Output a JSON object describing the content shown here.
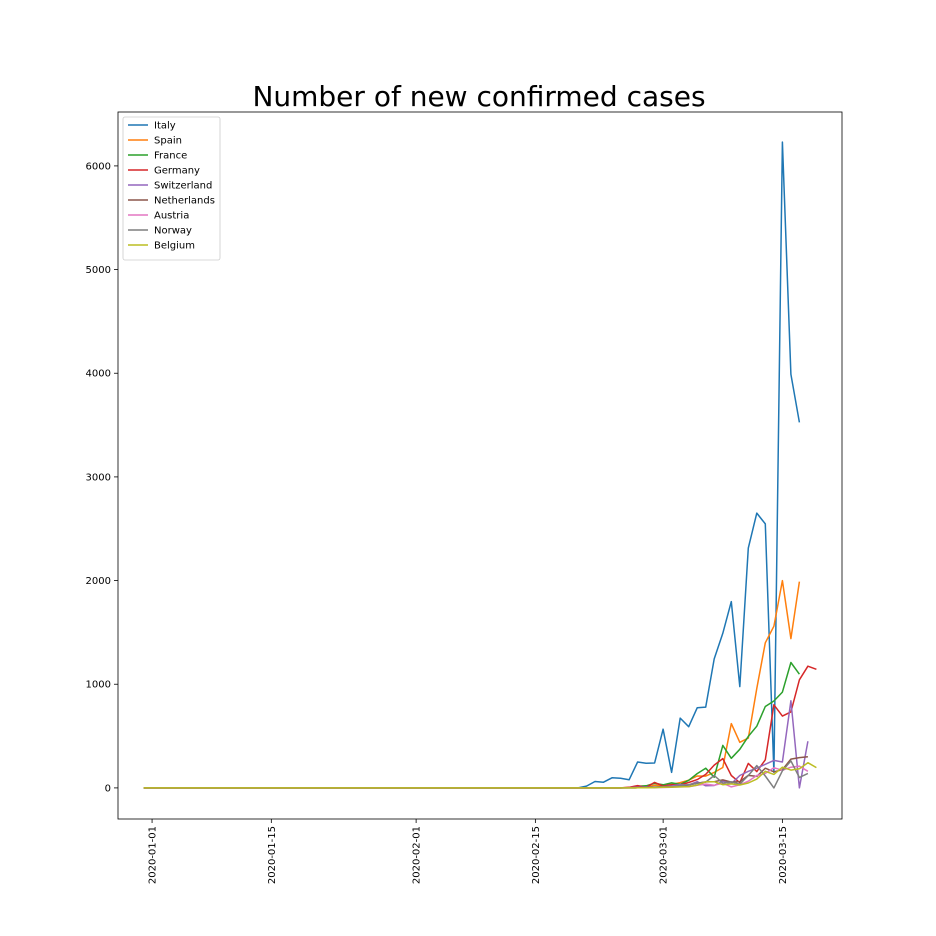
{
  "chart_data": {
    "type": "line",
    "title": "Number of new confirmed cases",
    "xlabel": "",
    "ylabel": "",
    "x_start": "2019-12-31",
    "x_end": "2020-03-19",
    "xlim": [
      "2019-12-28",
      "2020-03-22"
    ],
    "ylim": [
      -300,
      6520
    ],
    "x_ticks": [
      "2020-01-01",
      "2020-01-15",
      "2020-02-01",
      "2020-02-15",
      "2020-03-01",
      "2020-03-15"
    ],
    "y_ticks": [
      0,
      1000,
      2000,
      3000,
      4000,
      5000,
      6000
    ],
    "legend_position": "top-left",
    "grid": false,
    "series": [
      {
        "name": "Italy",
        "color": "#1f77b4",
        "points": [
          [
            "2019-12-31",
            0
          ],
          [
            "2020-02-20",
            0
          ],
          [
            "2020-02-21",
            17
          ],
          [
            "2020-02-22",
            62
          ],
          [
            "2020-02-23",
            55
          ],
          [
            "2020-02-24",
            97
          ],
          [
            "2020-02-25",
            93
          ],
          [
            "2020-02-26",
            78
          ],
          [
            "2020-02-27",
            250
          ],
          [
            "2020-02-28",
            238
          ],
          [
            "2020-02-29",
            240
          ],
          [
            "2020-03-01",
            566
          ],
          [
            "2020-03-02",
            150
          ],
          [
            "2020-03-03",
            673
          ],
          [
            "2020-03-04",
            590
          ],
          [
            "2020-03-05",
            773
          ],
          [
            "2020-03-06",
            779
          ],
          [
            "2020-03-07",
            1244
          ],
          [
            "2020-03-08",
            1491
          ],
          [
            "2020-03-09",
            1797
          ],
          [
            "2020-03-10",
            977
          ],
          [
            "2020-03-11",
            2313
          ],
          [
            "2020-03-12",
            2651
          ],
          [
            "2020-03-13",
            2547
          ],
          [
            "2020-03-14",
            150
          ],
          [
            "2020-03-15",
            6230
          ],
          [
            "2020-03-16",
            3990
          ],
          [
            "2020-03-17",
            3526
          ]
        ]
      },
      {
        "name": "Spain",
        "color": "#ff7f0e",
        "points": [
          [
            "2019-12-31",
            0
          ],
          [
            "2020-02-25",
            0
          ],
          [
            "2020-02-26",
            4
          ],
          [
            "2020-02-27",
            5
          ],
          [
            "2020-02-28",
            10
          ],
          [
            "2020-02-29",
            25
          ],
          [
            "2020-03-01",
            19
          ],
          [
            "2020-03-02",
            35
          ],
          [
            "2020-03-03",
            51
          ],
          [
            "2020-03-04",
            74
          ],
          [
            "2020-03-05",
            115
          ],
          [
            "2020-03-06",
            114
          ],
          [
            "2020-03-07",
            150
          ],
          [
            "2020-03-08",
            197
          ],
          [
            "2020-03-09",
            620
          ],
          [
            "2020-03-10",
            440
          ],
          [
            "2020-03-11",
            480
          ],
          [
            "2020-03-12",
            960
          ],
          [
            "2020-03-13",
            1400
          ],
          [
            "2020-03-14",
            1560
          ],
          [
            "2020-03-15",
            2000
          ],
          [
            "2020-03-16",
            1440
          ],
          [
            "2020-03-17",
            1990
          ]
        ]
      },
      {
        "name": "France",
        "color": "#2ca02c",
        "points": [
          [
            "2019-12-31",
            0
          ],
          [
            "2020-02-25",
            0
          ],
          [
            "2020-02-26",
            3
          ],
          [
            "2020-02-27",
            16
          ],
          [
            "2020-02-28",
            20
          ],
          [
            "2020-02-29",
            43
          ],
          [
            "2020-03-01",
            30
          ],
          [
            "2020-03-02",
            48
          ],
          [
            "2020-03-03",
            34
          ],
          [
            "2020-03-04",
            73
          ],
          [
            "2020-03-05",
            138
          ],
          [
            "2020-03-06",
            190
          ],
          [
            "2020-03-07",
            103
          ],
          [
            "2020-03-08",
            410
          ],
          [
            "2020-03-09",
            286
          ],
          [
            "2020-03-10",
            372
          ],
          [
            "2020-03-11",
            497
          ],
          [
            "2020-03-12",
            595
          ],
          [
            "2020-03-13",
            785
          ],
          [
            "2020-03-14",
            838
          ],
          [
            "2020-03-15",
            924
          ],
          [
            "2020-03-16",
            1210
          ],
          [
            "2020-03-17",
            1097
          ]
        ]
      },
      {
        "name": "Germany",
        "color": "#d62728",
        "points": [
          [
            "2019-12-31",
            0
          ],
          [
            "2020-02-25",
            0
          ],
          [
            "2020-02-26",
            6
          ],
          [
            "2020-02-27",
            22
          ],
          [
            "2020-02-28",
            6
          ],
          [
            "2020-02-29",
            53
          ],
          [
            "2020-03-01",
            18
          ],
          [
            "2020-03-02",
            31
          ],
          [
            "2020-03-03",
            28
          ],
          [
            "2020-03-04",
            52
          ],
          [
            "2020-03-05",
            80
          ],
          [
            "2020-03-06",
            130
          ],
          [
            "2020-03-07",
            220
          ],
          [
            "2020-03-08",
            283
          ],
          [
            "2020-03-09",
            120
          ],
          [
            "2020-03-10",
            50
          ],
          [
            "2020-03-11",
            236
          ],
          [
            "2020-03-12",
            157
          ],
          [
            "2020-03-13",
            271
          ],
          [
            "2020-03-14",
            802
          ],
          [
            "2020-03-15",
            693
          ],
          [
            "2020-03-16",
            733
          ],
          [
            "2020-03-17",
            1043
          ],
          [
            "2020-03-18",
            1174
          ],
          [
            "2020-03-19",
            1144
          ]
        ]
      },
      {
        "name": "Switzerland",
        "color": "#9467bd",
        "points": [
          [
            "2019-12-31",
            0
          ],
          [
            "2020-02-25",
            0
          ],
          [
            "2020-02-26",
            1
          ],
          [
            "2020-02-27",
            7
          ],
          [
            "2020-02-28",
            10
          ],
          [
            "2020-02-29",
            3
          ],
          [
            "2020-03-01",
            12
          ],
          [
            "2020-03-02",
            18
          ],
          [
            "2020-03-03",
            32
          ],
          [
            "2020-03-04",
            28
          ],
          [
            "2020-03-05",
            60
          ],
          [
            "2020-03-06",
            20
          ],
          [
            "2020-03-07",
            23
          ],
          [
            "2020-03-08",
            65
          ],
          [
            "2020-03-09",
            40
          ],
          [
            "2020-03-10",
            120
          ],
          [
            "2020-03-11",
            160
          ],
          [
            "2020-03-12",
            190
          ],
          [
            "2020-03-13",
            228
          ],
          [
            "2020-03-14",
            265
          ],
          [
            "2020-03-15",
            250
          ],
          [
            "2020-03-16",
            840
          ],
          [
            "2020-03-17",
            0
          ],
          [
            "2020-03-18",
            450
          ]
        ]
      },
      {
        "name": "Netherlands",
        "color": "#8c564b",
        "points": [
          [
            "2019-12-31",
            0
          ],
          [
            "2020-02-26",
            0
          ],
          [
            "2020-02-27",
            1
          ],
          [
            "2020-02-28",
            6
          ],
          [
            "2020-02-29",
            5
          ],
          [
            "2020-03-01",
            14
          ],
          [
            "2020-03-02",
            6
          ],
          [
            "2020-03-03",
            20
          ],
          [
            "2020-03-04",
            28
          ],
          [
            "2020-03-05",
            44
          ],
          [
            "2020-03-06",
            58
          ],
          [
            "2020-03-07",
            60
          ],
          [
            "2020-03-08",
            77
          ],
          [
            "2020-03-09",
            56
          ],
          [
            "2020-03-10",
            61
          ],
          [
            "2020-03-11",
            121
          ],
          [
            "2020-03-12",
            111
          ],
          [
            "2020-03-13",
            190
          ],
          [
            "2020-03-14",
            155
          ],
          [
            "2020-03-15",
            176
          ],
          [
            "2020-03-16",
            278
          ],
          [
            "2020-03-17",
            292
          ],
          [
            "2020-03-18",
            300
          ]
        ]
      },
      {
        "name": "Austria",
        "color": "#e377c2",
        "points": [
          [
            "2019-12-31",
            0
          ],
          [
            "2020-02-25",
            0
          ],
          [
            "2020-02-26",
            2
          ],
          [
            "2020-02-27",
            1
          ],
          [
            "2020-02-28",
            1
          ],
          [
            "2020-02-29",
            5
          ],
          [
            "2020-03-01",
            4
          ],
          [
            "2020-03-02",
            6
          ],
          [
            "2020-03-03",
            10
          ],
          [
            "2020-03-04",
            12
          ],
          [
            "2020-03-05",
            25
          ],
          [
            "2020-03-06",
            37
          ],
          [
            "2020-03-07",
            25
          ],
          [
            "2020-03-08",
            45
          ],
          [
            "2020-03-09",
            10
          ],
          [
            "2020-03-10",
            30
          ],
          [
            "2020-03-11",
            65
          ],
          [
            "2020-03-12",
            120
          ],
          [
            "2020-03-13",
            140
          ],
          [
            "2020-03-14",
            195
          ],
          [
            "2020-03-15",
            170
          ],
          [
            "2020-03-16",
            200
          ],
          [
            "2020-03-17",
            210
          ],
          [
            "2020-03-18",
            160
          ]
        ]
      },
      {
        "name": "Norway",
        "color": "#7f7f7f",
        "points": [
          [
            "2019-12-31",
            0
          ],
          [
            "2020-02-26",
            0
          ],
          [
            "2020-02-27",
            1
          ],
          [
            "2020-02-28",
            5
          ],
          [
            "2020-02-29",
            9
          ],
          [
            "2020-03-01",
            10
          ],
          [
            "2020-03-02",
            8
          ],
          [
            "2020-03-03",
            22
          ],
          [
            "2020-03-04",
            30
          ],
          [
            "2020-03-05",
            44
          ],
          [
            "2020-03-06",
            56
          ],
          [
            "2020-03-07",
            120
          ],
          [
            "2020-03-08",
            46
          ],
          [
            "2020-03-09",
            58
          ],
          [
            "2020-03-10",
            36
          ],
          [
            "2020-03-11",
            120
          ],
          [
            "2020-03-12",
            215
          ],
          [
            "2020-03-13",
            115
          ],
          [
            "2020-03-14",
            0
          ],
          [
            "2020-03-15",
            165
          ],
          [
            "2020-03-16",
            260
          ],
          [
            "2020-03-17",
            100
          ],
          [
            "2020-03-18",
            140
          ]
        ]
      },
      {
        "name": "Belgium",
        "color": "#bcbd22",
        "points": [
          [
            "2019-12-31",
            0
          ],
          [
            "2020-02-26",
            0
          ],
          [
            "2020-02-27",
            1
          ],
          [
            "2020-02-28",
            2
          ],
          [
            "2020-02-29",
            3
          ],
          [
            "2020-03-01",
            6
          ],
          [
            "2020-03-02",
            8
          ],
          [
            "2020-03-03",
            10
          ],
          [
            "2020-03-04",
            13
          ],
          [
            "2020-03-05",
            27
          ],
          [
            "2020-03-06",
            59
          ],
          [
            "2020-03-07",
            60
          ],
          [
            "2020-03-08",
            31
          ],
          [
            "2020-03-09",
            39
          ],
          [
            "2020-03-10",
            28
          ],
          [
            "2020-03-11",
            47
          ],
          [
            "2020-03-12",
            85
          ],
          [
            "2020-03-13",
            160
          ],
          [
            "2020-03-14",
            130
          ],
          [
            "2020-03-15",
            200
          ],
          [
            "2020-03-16",
            172
          ],
          [
            "2020-03-17",
            185
          ],
          [
            "2020-03-18",
            243
          ],
          [
            "2020-03-19",
            196
          ]
        ]
      }
    ]
  }
}
